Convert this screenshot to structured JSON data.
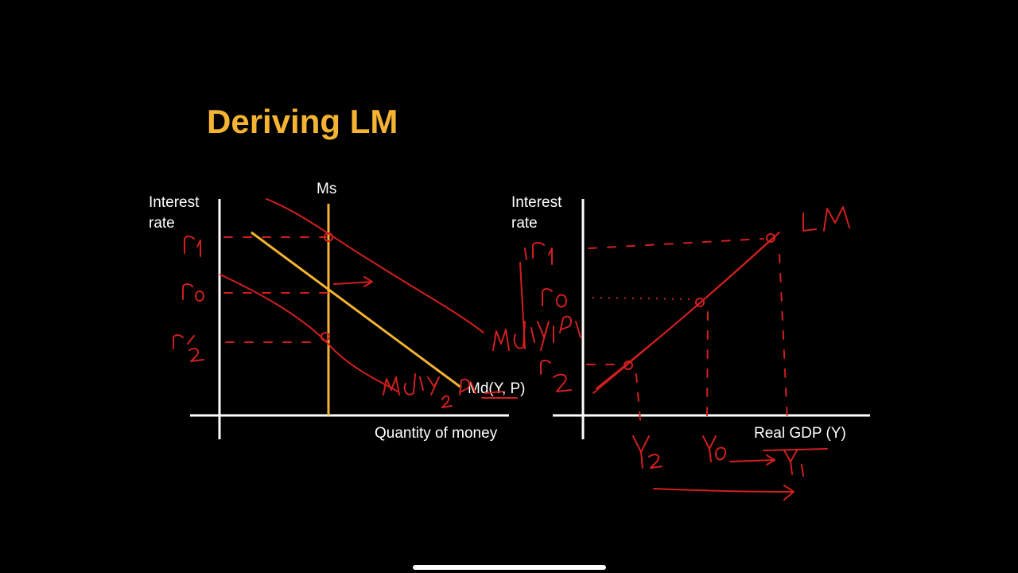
{
  "title": "Deriving LM",
  "colors": {
    "background": "#000000",
    "title": "#F4B331",
    "axes": "#FFFFFF",
    "money_curves": "#F4B331",
    "annotations": "#D11F1F"
  },
  "left_graph": {
    "y_axis_label_line1": "Interest",
    "y_axis_label_line2": "rate",
    "x_axis_label": "Quantity of money",
    "supply_label": "Ms",
    "demand_label": "Md(Y, P)"
  },
  "right_graph": {
    "y_axis_label_line1": "Interest",
    "y_axis_label_line2": "rate",
    "x_axis_label": "Real GDP (Y)"
  },
  "handwritten_notes": {
    "left_rates": [
      "r1",
      "r0",
      "r2"
    ],
    "left_demand_shifts": [
      "Md(Y1,P)",
      "Md(Y2,P)"
    ],
    "right_rates": [
      "r1",
      "r0",
      "r2"
    ],
    "right_outputs": [
      "Y2",
      "Y0",
      "Y1"
    ],
    "curve_label": "LM"
  }
}
